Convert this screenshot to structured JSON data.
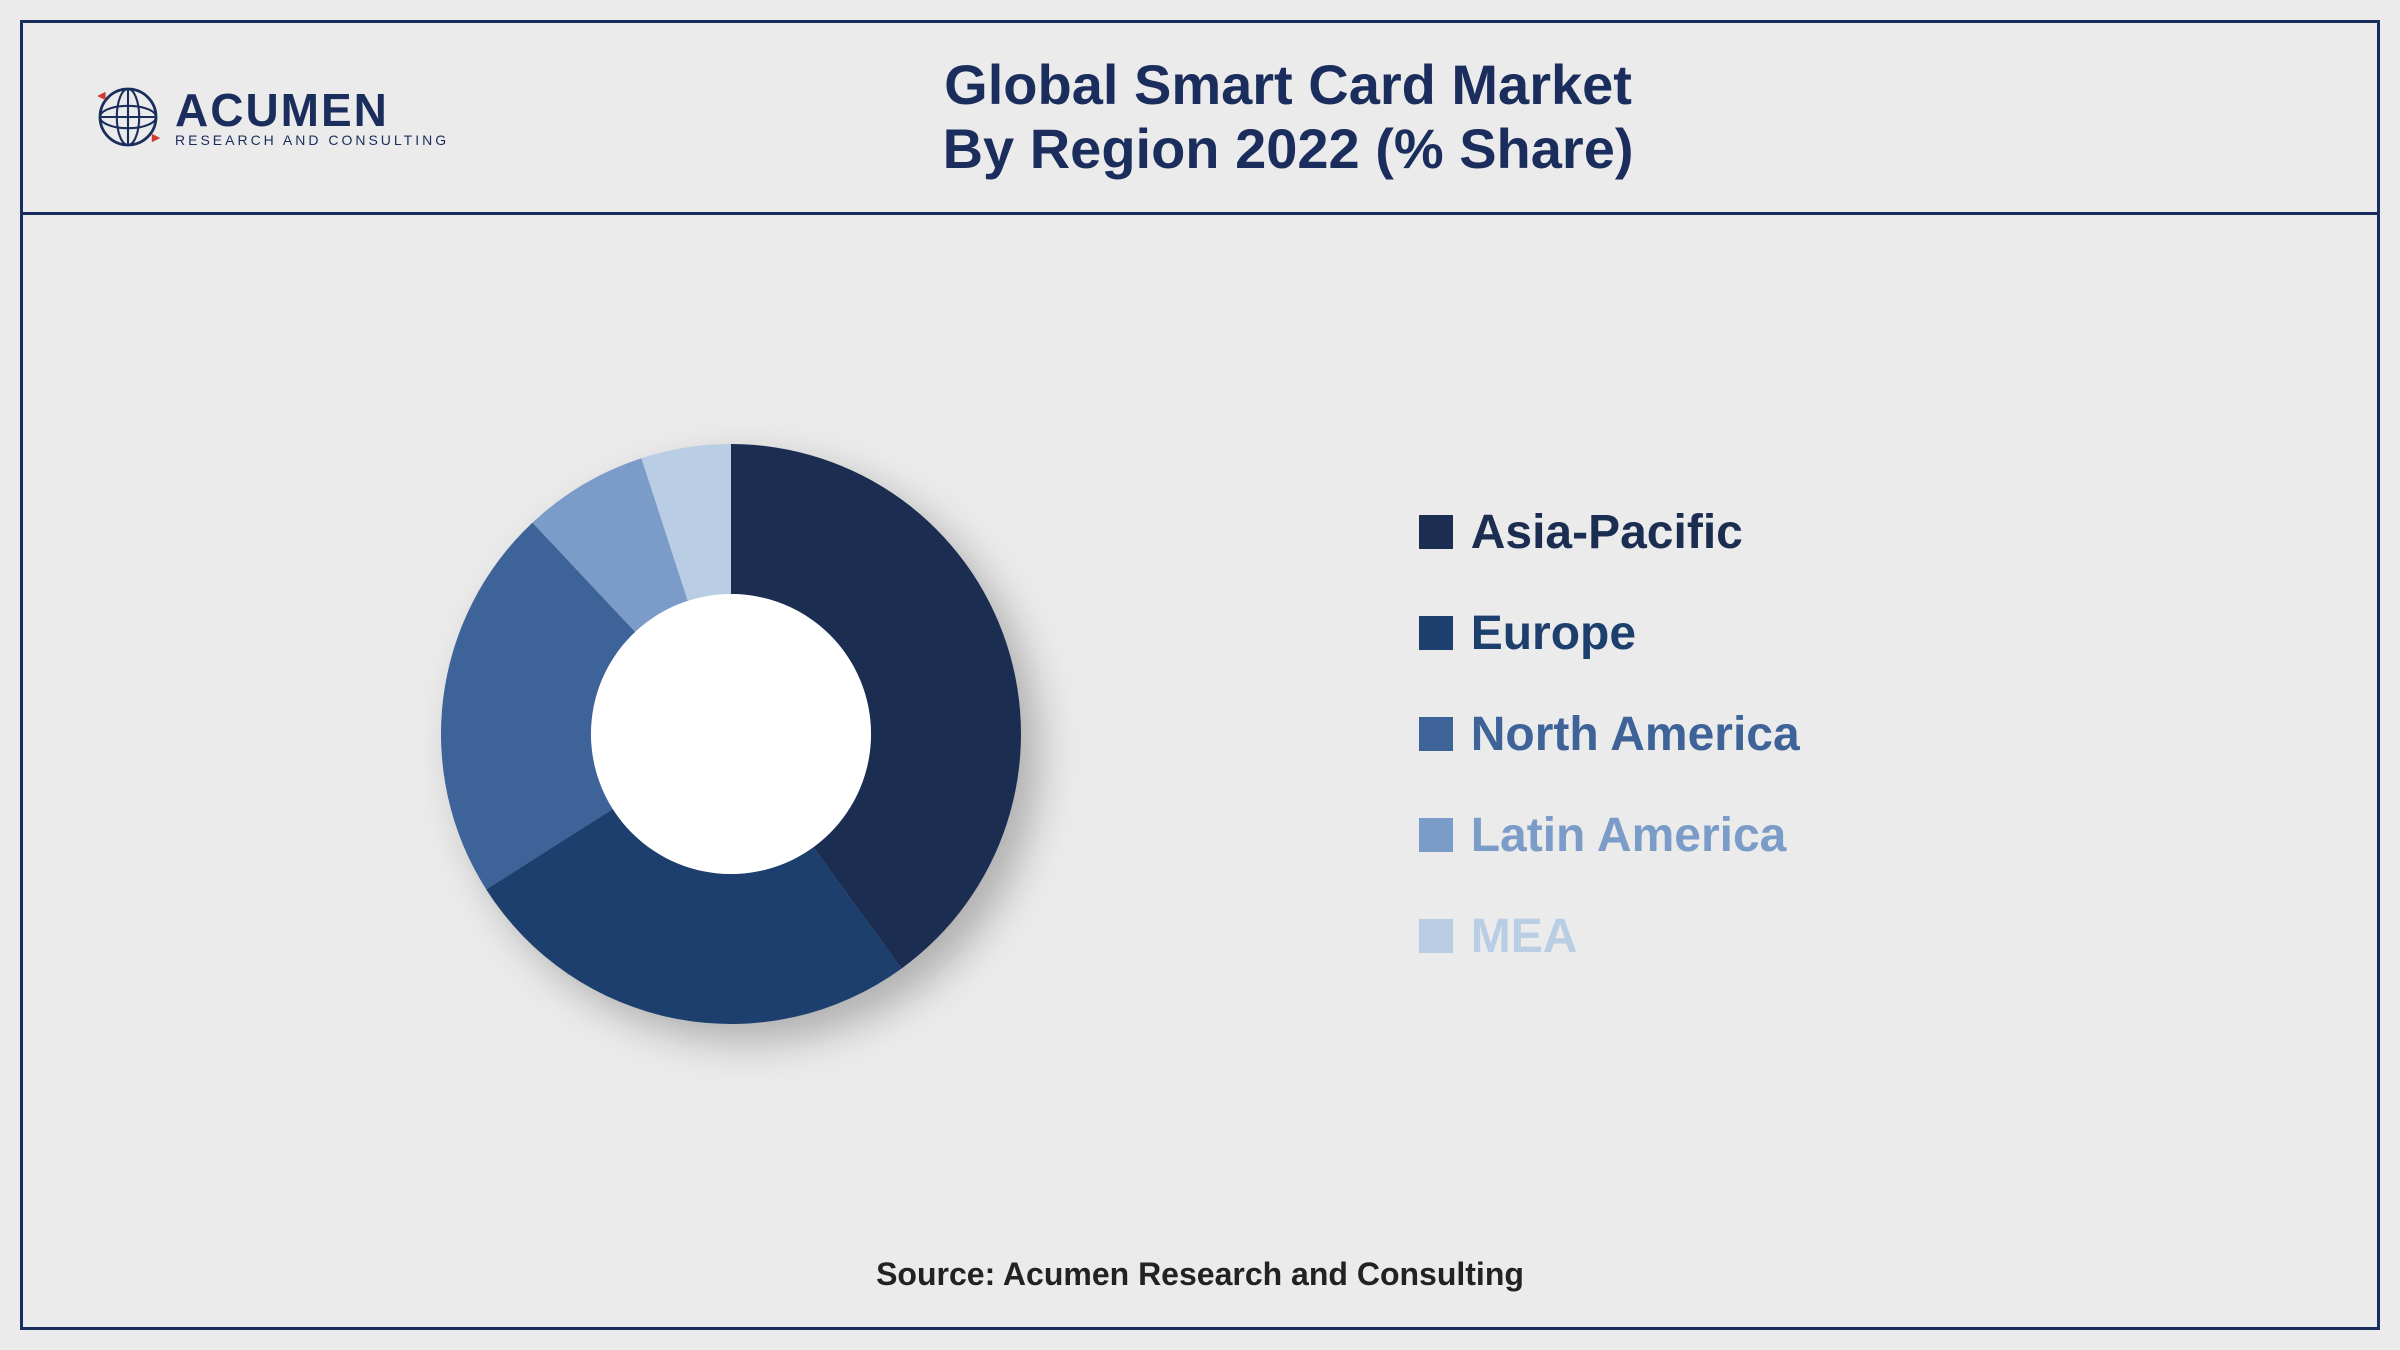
{
  "logo": {
    "name": "ACUMEN",
    "tagline": "RESEARCH AND CONSULTING",
    "globe_stroke": "#1a2d5c",
    "globe_accent": "#d23a2e"
  },
  "title": {
    "line1": "Global Smart Card Market",
    "line2": "By Region 2022 (% Share)",
    "color": "#1a2d5c",
    "fontsize": 56
  },
  "chart": {
    "type": "donut",
    "outer_radius": 290,
    "inner_radius": 140,
    "center_fill": "#ffffff",
    "background_color": "#ebebeb",
    "start_angle_deg": 0,
    "slices": [
      {
        "label": "Asia-Pacific",
        "value": 40,
        "color": "#1b2e52"
      },
      {
        "label": "Europe",
        "value": 26,
        "color": "#1d3f6e"
      },
      {
        "label": "North America",
        "value": 22,
        "color": "#3d6399"
      },
      {
        "label": "Latin America",
        "value": 7,
        "color": "#7b9bc8"
      },
      {
        "label": "MEA",
        "value": 5,
        "color": "#b9cde4"
      }
    ]
  },
  "legend": {
    "fontsize": 48,
    "items": [
      {
        "label": "Asia-Pacific",
        "color": "#1b2e52"
      },
      {
        "label": "Europe",
        "color": "#1d3f6e"
      },
      {
        "label": "North America",
        "color": "#3d6399"
      },
      {
        "label": "Latin America",
        "color": "#7b9bc8"
      },
      {
        "label": "MEA",
        "color": "#b9cde4"
      }
    ]
  },
  "footer": {
    "text": "Source: Acumen Research and Consulting",
    "color": "#222222",
    "fontsize": 32
  }
}
